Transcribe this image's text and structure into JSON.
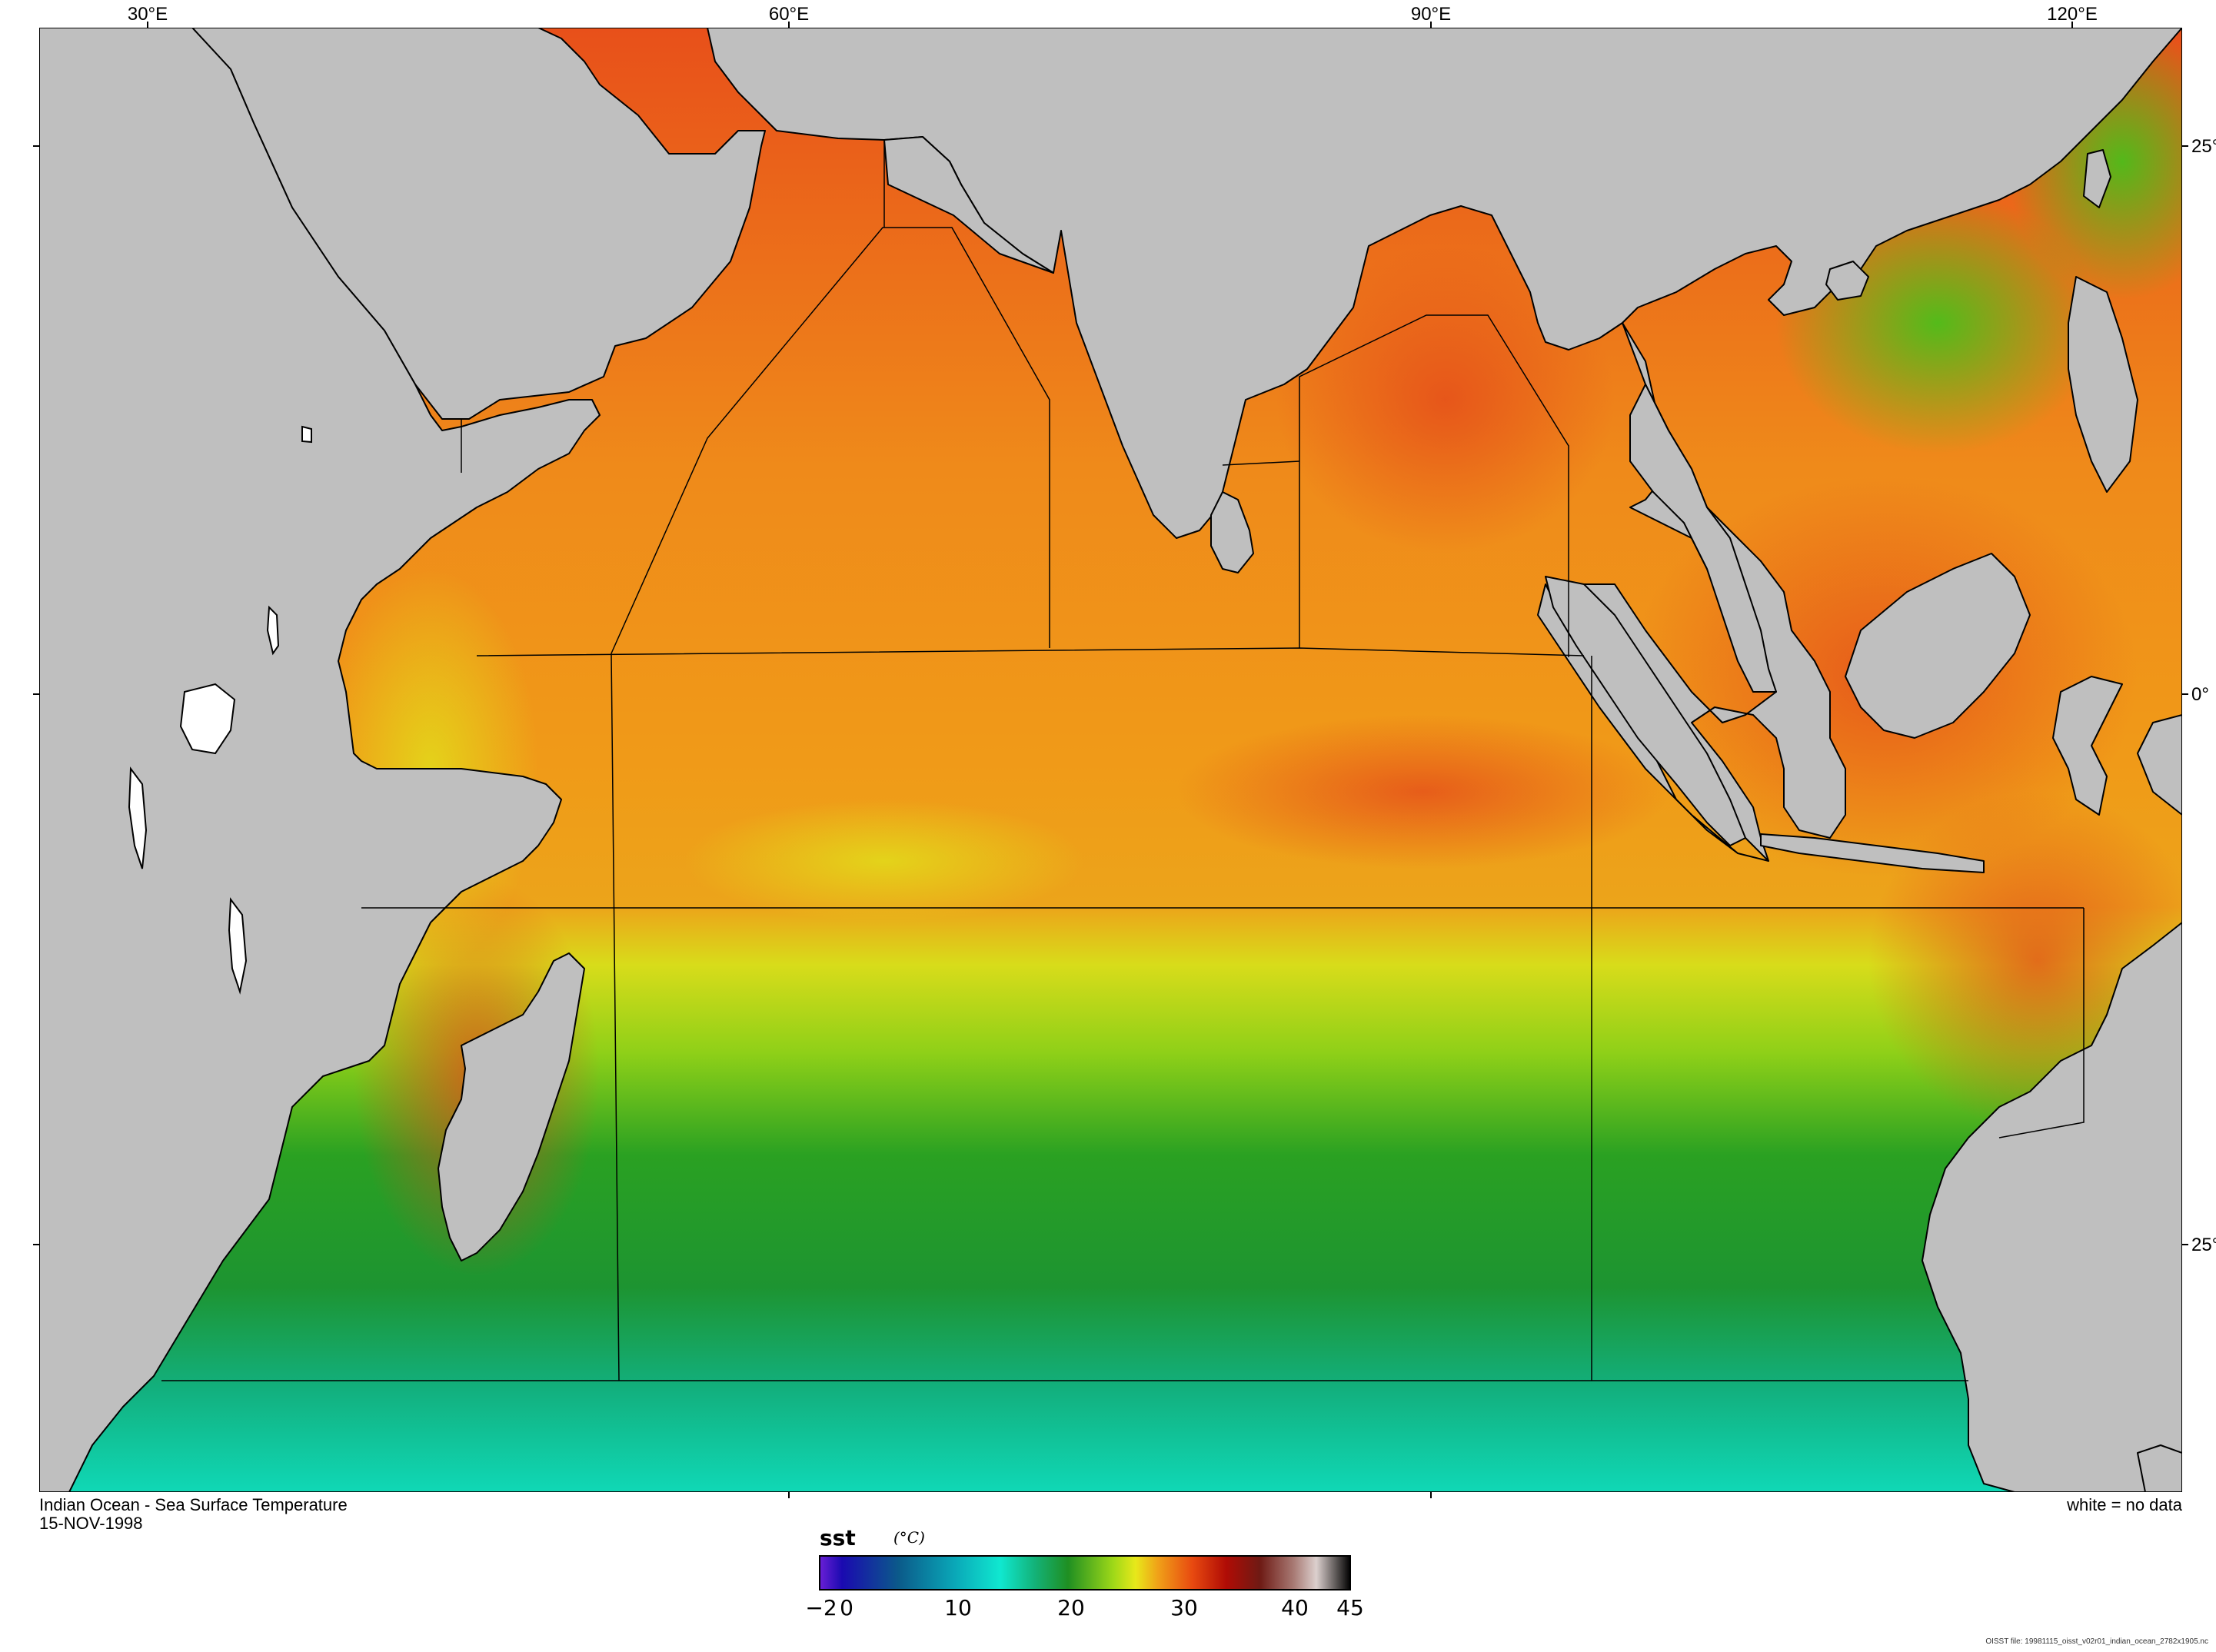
{
  "title": "Indian Ocean - Sea Surface Temperature",
  "date": "15-NOV-1998",
  "note": "white = no data",
  "file_note": "OISST file: 19981115_oisst_v02r01_indian_ocean_2782x1905.nc",
  "lon_labels": [
    "30°E",
    "60°E",
    "90°E",
    "120°E"
  ],
  "lat_labels": [
    "25°",
    "0°",
    "25°"
  ],
  "colorbar": {
    "variable": "sst",
    "unit": "(°C)",
    "tick_labels": [
      "−2",
      "0",
      "10",
      "20",
      "30",
      "40",
      "45"
    ],
    "range": [
      -2,
      45
    ],
    "stops": [
      {
        "v": -2,
        "c": "#6a1fd6"
      },
      {
        "v": 0,
        "c": "#1a0ab0"
      },
      {
        "v": 5,
        "c": "#0b5a8a"
      },
      {
        "v": 10,
        "c": "#0aa8b8"
      },
      {
        "v": 14,
        "c": "#10e8d0"
      },
      {
        "v": 17,
        "c": "#13b37a"
      },
      {
        "v": 20,
        "c": "#1f8f22"
      },
      {
        "v": 24,
        "c": "#9ed818"
      },
      {
        "v": 26,
        "c": "#e8e81a"
      },
      {
        "v": 28,
        "c": "#f0a018"
      },
      {
        "v": 31,
        "c": "#e84a10"
      },
      {
        "v": 34,
        "c": "#b00c05"
      },
      {
        "v": 37,
        "c": "#6e1a14"
      },
      {
        "v": 40,
        "c": "#a87a74"
      },
      {
        "v": 42,
        "c": "#dcd0ce"
      },
      {
        "v": 45,
        "c": "#000000"
      }
    ]
  },
  "colors": {
    "land": "#bfbfbf",
    "no_data": "#ffffff",
    "coastline": "#000000"
  }
}
